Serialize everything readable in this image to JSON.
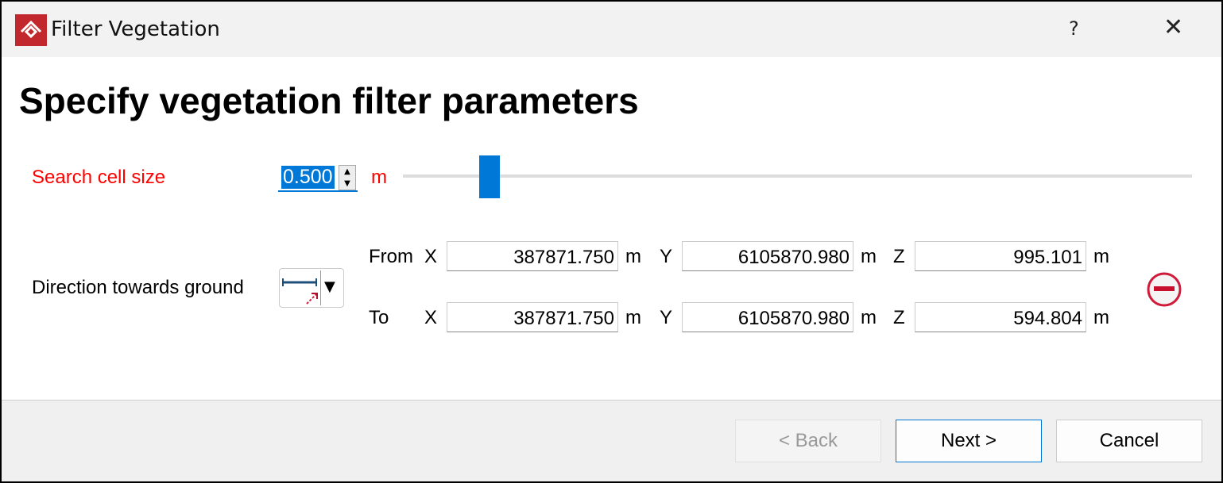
{
  "window": {
    "title": "Filter Vegetation",
    "help": "?",
    "close": "✕"
  },
  "heading": "Specify vegetation filter parameters",
  "search_cell": {
    "label": "Search cell size",
    "value": "0.500",
    "unit": "m",
    "slider_fraction": 0.11
  },
  "direction": {
    "label": "Direction towards ground",
    "from": {
      "label": "From",
      "x": "387871.750",
      "y": "6105870.980",
      "z": "995.101"
    },
    "to": {
      "label": "To",
      "x": "387871.750",
      "y": "6105870.980",
      "z": "594.804"
    },
    "axis_x": "X",
    "axis_y": "Y",
    "axis_z": "Z",
    "unit": "m"
  },
  "buttons": {
    "back": "< Back",
    "next": "Next >",
    "cancel": "Cancel"
  },
  "colors": {
    "accent": "#0078d7",
    "error": "#ff0000",
    "logo": "#c1272d"
  }
}
